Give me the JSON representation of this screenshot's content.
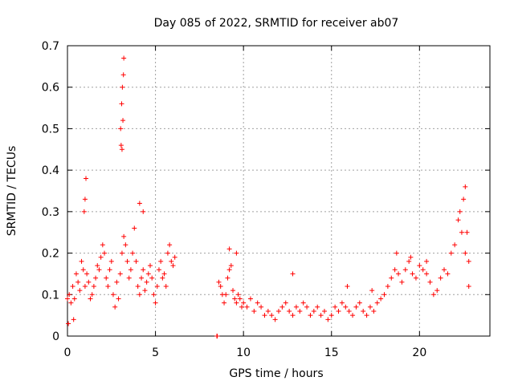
{
  "chart_data": {
    "type": "scatter",
    "title": "Day 085 of 2022, SRMTID for receiver ab07",
    "xlabel": "GPS time / hours",
    "ylabel": "SRMTID / TECUs",
    "xlim": [
      0,
      24
    ],
    "ylim": [
      0,
      0.7
    ],
    "xticks": [
      0,
      5,
      10,
      15,
      20
    ],
    "yticks": [
      0,
      0.1,
      0.2,
      0.3,
      0.4,
      0.5,
      0.6,
      0.7
    ],
    "xtick_labels": [
      "0",
      "5",
      "10",
      "15",
      "20"
    ],
    "ytick_labels": [
      "0",
      "0.1",
      "0.2",
      "0.3",
      "0.4",
      "0.5",
      "0.6",
      "0.7"
    ],
    "grid": true,
    "marker": "+",
    "color": "#ff0000",
    "series": [
      {
        "name": "ab07",
        "x": [
          0.0,
          0.1,
          0.2,
          0.3,
          0.4,
          0.5,
          0.6,
          0.7,
          0.8,
          0.9,
          1.0,
          1.1,
          1.2,
          1.3,
          1.4,
          1.5,
          1.6,
          1.7,
          1.8,
          1.9,
          2.0,
          2.1,
          2.2,
          2.3,
          2.4,
          2.5,
          2.6,
          2.7,
          2.8,
          2.9,
          3.0,
          3.1,
          3.2,
          3.3,
          3.4,
          3.5,
          3.6,
          3.7,
          3.8,
          3.9,
          4.0,
          4.1,
          4.2,
          4.3,
          4.4,
          4.5,
          4.6,
          4.7,
          4.8,
          4.9,
          5.0,
          5.1,
          5.2,
          5.3,
          5.4,
          5.5,
          5.6,
          5.7,
          5.8,
          5.9,
          6.0,
          6.1,
          8.5,
          8.5,
          8.5,
          8.5,
          8.6,
          8.7,
          8.8,
          8.9,
          9.0,
          9.1,
          9.2,
          9.3,
          9.4,
          9.5,
          9.6,
          9.7,
          9.8,
          9.9,
          10.0,
          10.2,
          10.4,
          10.6,
          10.8,
          11.0,
          11.2,
          11.4,
          11.6,
          11.8,
          12.0,
          12.2,
          12.4,
          12.6,
          12.8,
          13.0,
          13.2,
          13.4,
          13.6,
          13.8,
          14.0,
          14.2,
          14.4,
          14.6,
          14.8,
          15.0,
          15.2,
          15.4,
          15.6,
          15.8,
          16.0,
          16.2,
          16.4,
          16.6,
          16.8,
          17.0,
          17.2,
          17.4,
          17.6,
          17.8,
          18.0,
          18.2,
          18.4,
          18.6,
          18.8,
          19.0,
          19.2,
          19.4,
          19.6,
          19.8,
          20.0,
          20.2,
          20.4,
          20.6,
          20.8,
          21.0,
          21.2,
          21.4,
          21.6,
          21.8,
          22.0,
          22.2,
          22.4,
          22.6,
          22.8,
          0.05,
          0.35,
          0.95,
          1.0,
          1.05,
          3.05,
          3.1,
          3.15,
          3.08,
          3.12,
          3.18,
          3.02,
          3.2,
          4.1,
          4.3,
          9.2,
          9.6,
          12.8,
          15.9,
          17.3,
          18.7,
          19.5,
          20.4,
          22.3,
          22.5,
          22.6,
          22.7,
          22.8
        ],
        "y": [
          0.09,
          0.1,
          0.08,
          0.12,
          0.09,
          0.15,
          0.13,
          0.11,
          0.18,
          0.16,
          0.12,
          0.15,
          0.13,
          0.09,
          0.1,
          0.12,
          0.14,
          0.17,
          0.16,
          0.19,
          0.22,
          0.2,
          0.14,
          0.12,
          0.16,
          0.18,
          0.1,
          0.07,
          0.13,
          0.09,
          0.15,
          0.2,
          0.24,
          0.22,
          0.18,
          0.14,
          0.16,
          0.2,
          0.26,
          0.18,
          0.12,
          0.1,
          0.14,
          0.16,
          0.11,
          0.13,
          0.15,
          0.17,
          0.14,
          0.1,
          0.08,
          0.12,
          0.16,
          0.18,
          0.14,
          0.15,
          0.12,
          0.2,
          0.22,
          0.18,
          0.17,
          0.19,
          0.0,
          0.0,
          0.0,
          0.0,
          0.13,
          0.12,
          0.1,
          0.08,
          0.1,
          0.14,
          0.16,
          0.17,
          0.11,
          0.09,
          0.08,
          0.1,
          0.09,
          0.07,
          0.08,
          0.07,
          0.09,
          0.06,
          0.08,
          0.07,
          0.05,
          0.06,
          0.05,
          0.04,
          0.06,
          0.07,
          0.08,
          0.06,
          0.05,
          0.07,
          0.06,
          0.08,
          0.07,
          0.05,
          0.06,
          0.07,
          0.05,
          0.06,
          0.04,
          0.05,
          0.07,
          0.06,
          0.08,
          0.07,
          0.06,
          0.05,
          0.07,
          0.08,
          0.06,
          0.05,
          0.07,
          0.06,
          0.08,
          0.09,
          0.1,
          0.12,
          0.14,
          0.16,
          0.15,
          0.13,
          0.16,
          0.18,
          0.15,
          0.14,
          0.17,
          0.16,
          0.15,
          0.13,
          0.1,
          0.11,
          0.14,
          0.16,
          0.15,
          0.2,
          0.22,
          0.28,
          0.25,
          0.2,
          0.18,
          0.03,
          0.04,
          0.3,
          0.33,
          0.38,
          0.46,
          0.45,
          0.52,
          0.56,
          0.6,
          0.63,
          0.5,
          0.67,
          0.32,
          0.3,
          0.21,
          0.2,
          0.15,
          0.12,
          0.11,
          0.2,
          0.19,
          0.18,
          0.3,
          0.33,
          0.36,
          0.25,
          0.12
        ]
      }
    ]
  }
}
